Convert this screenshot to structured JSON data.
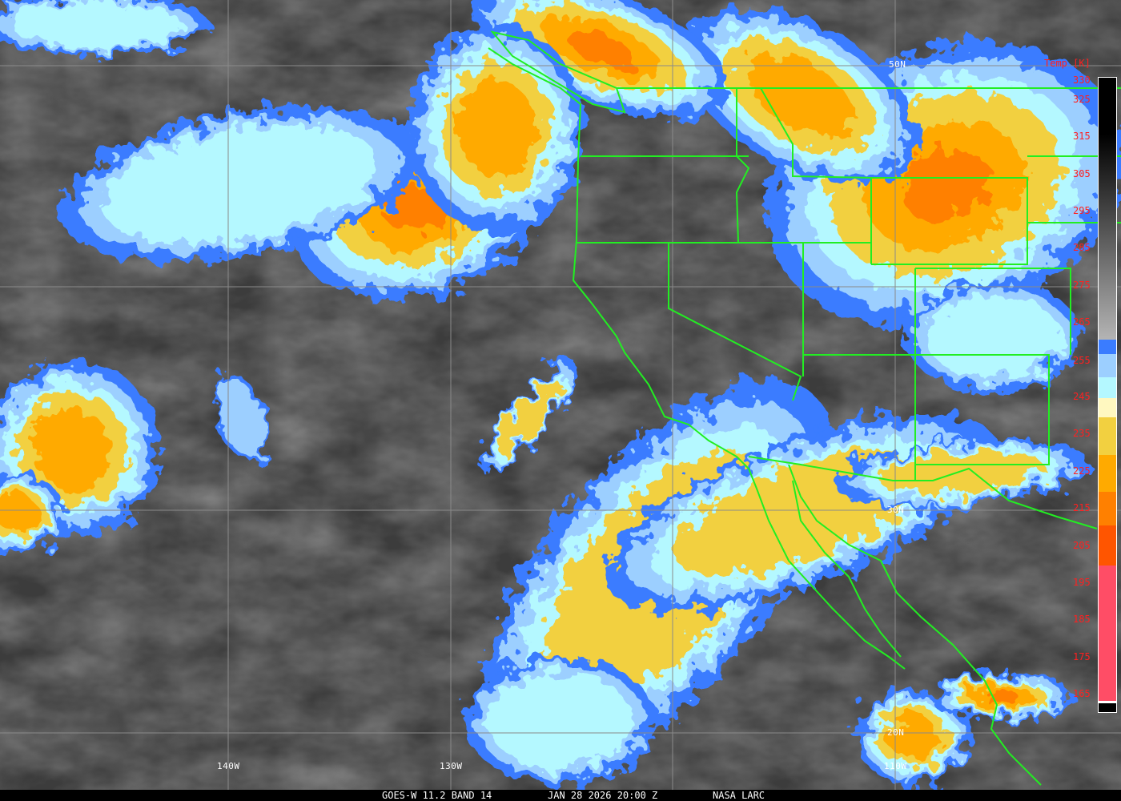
{
  "caption": {
    "product": "GOES-W 11.2 BAND 14",
    "datetime": "JAN 28 2026 20:00 Z",
    "source": "NASA LARC"
  },
  "grid_labels": {
    "lat": [
      "50N",
      "30N",
      "20N"
    ],
    "lon": [
      "140W",
      "130W",
      "110W"
    ]
  },
  "legend": {
    "title": "Temp [K]",
    "ticks": [
      "330",
      "325",
      "315",
      "305",
      "295",
      "285",
      "275",
      "265",
      "255",
      "245",
      "235",
      "225",
      "215",
      "205",
      "195",
      "185",
      "175",
      "165"
    ],
    "colors": {
      "warm_gray_top": "#000000",
      "warm_gray_bottom": "#b4b4b4",
      "blue": "#3a7cff",
      "light_blue": "#9ccfff",
      "cyan": "#b4f8ff",
      "pale_yellow": "#fff8c0",
      "yellow": "#f2d040",
      "orange": "#ffaa00",
      "dark_orange": "#ff8000",
      "red_orange": "#ff5500",
      "pink": "#ff4d66",
      "coastline": "#22ee22",
      "graticule": "#8a8a8a"
    }
  }
}
